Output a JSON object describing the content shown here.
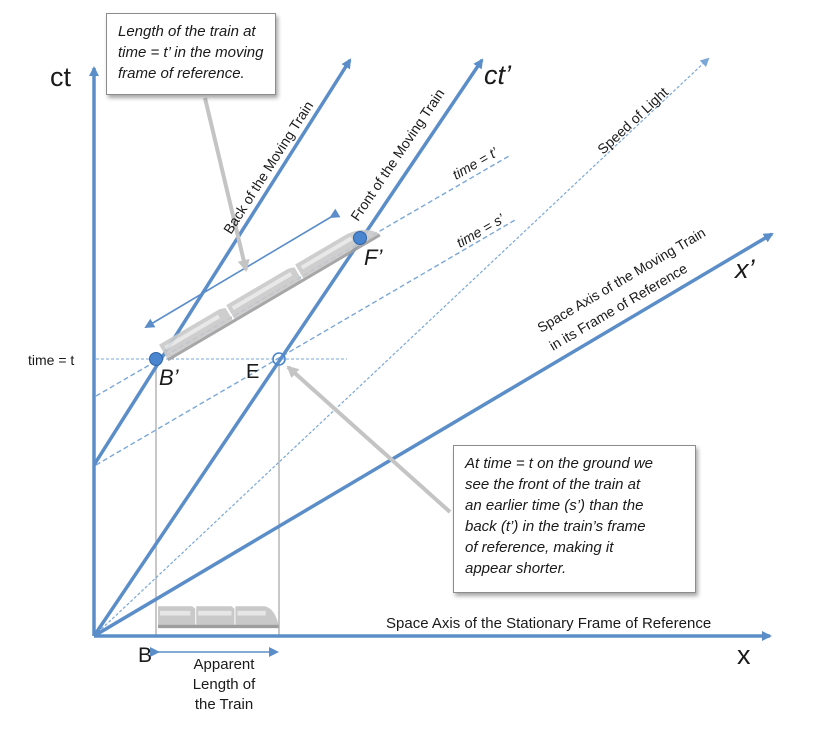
{
  "colors": {
    "axis": "#5b8ec9",
    "axis_light": "#7aa7d8",
    "guide": "#a8a8a8",
    "point": "#4a86cf",
    "text": "#1a1a1a"
  },
  "axes": {
    "ct": "ct",
    "ct_prime": "ct’",
    "x": "x",
    "x_prime": "x’"
  },
  "lines": {
    "back": "Back of the Moving Train",
    "front": "Front of the Moving Train",
    "speed_of_light": "Speed of Light",
    "space_axis_moving_1": "Space Axis of the Moving Train",
    "space_axis_moving_2": "in its Frame of Reference",
    "space_axis_stationary": "Space Axis of the Stationary Frame of Reference",
    "time_t_prime": "time = t’",
    "time_s_prime": "time = s’",
    "time_t": "time = t"
  },
  "points": {
    "b_prime": "B’",
    "f_prime": "F’",
    "e": "E",
    "b": "B"
  },
  "notes": {
    "top": [
      "Length of the train at",
      "time = t’ in the moving",
      "frame of reference."
    ],
    "bottom": [
      "At time = t on the ground we",
      "see the front of the train at",
      "an earlier time (s’) than the",
      "back (t’) in the train’s frame",
      "of reference, making it",
      "appear shorter."
    ]
  },
  "apparent_length": [
    "Apparent",
    "Length of",
    "the Train"
  ],
  "icons": [
    "train-icon",
    "arrow-icon"
  ]
}
